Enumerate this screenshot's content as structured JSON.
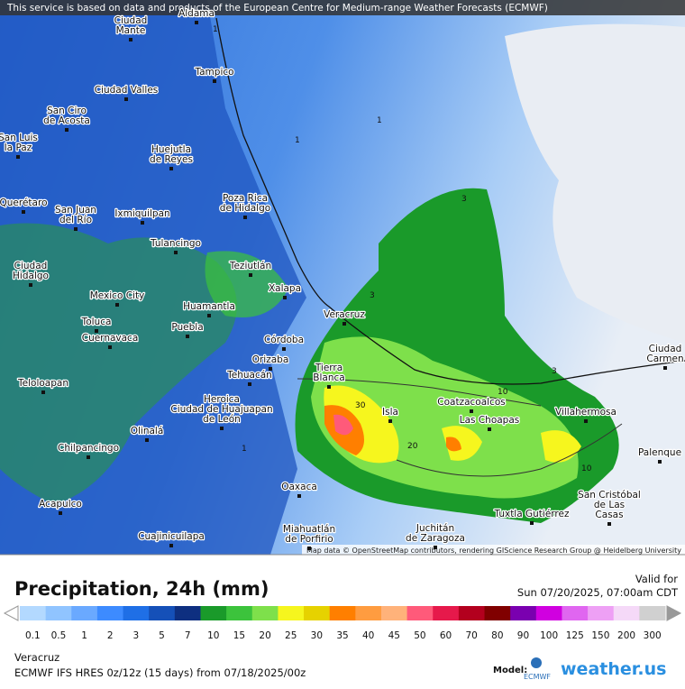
{
  "header": {
    "notice": "This service is based on data and products of the European Centre for Medium-range Weather Forecasts (ECMWF)"
  },
  "map": {
    "attribution": "Map data © OpenStreetMap contributors, rendering GIScience Research Group @ Heidelberg University",
    "cities": [
      {
        "lines": [
          "Aldama"
        ]
      },
      {
        "lines": [
          "Ciudad",
          "Mante"
        ]
      },
      {
        "lines": [
          "Tampico"
        ]
      },
      {
        "lines": [
          "Ciudad Valles"
        ]
      },
      {
        "lines": [
          "San Ciro",
          "de Acosta"
        ]
      },
      {
        "lines": [
          "San Luis",
          "la Paz"
        ]
      },
      {
        "lines": [
          "Huejutla",
          "de Reyes"
        ]
      },
      {
        "lines": [
          "Querétaro"
        ]
      },
      {
        "lines": [
          "San Juan",
          "del Río"
        ]
      },
      {
        "lines": [
          "Ixmiquilpan"
        ]
      },
      {
        "lines": [
          "Poza Rica",
          "de Hidalgo"
        ]
      },
      {
        "lines": [
          "Tulancingo"
        ]
      },
      {
        "lines": [
          "Ciudad",
          "Hidalgo"
        ]
      },
      {
        "lines": [
          "Teziutlán"
        ]
      },
      {
        "lines": [
          "Xalapa"
        ]
      },
      {
        "lines": [
          "Mexico City"
        ]
      },
      {
        "lines": [
          "Huamantla"
        ]
      },
      {
        "lines": [
          "Veracruz"
        ]
      },
      {
        "lines": [
          "Toluca"
        ]
      },
      {
        "lines": [
          "Puebla"
        ]
      },
      {
        "lines": [
          "Cuernavaca"
        ]
      },
      {
        "lines": [
          "Córdoba"
        ]
      },
      {
        "lines": [
          "Orizaba"
        ]
      },
      {
        "lines": [
          "Tierra",
          "Blanca"
        ]
      },
      {
        "lines": [
          "Tehuacán"
        ]
      },
      {
        "lines": [
          "Teloloapan"
        ]
      },
      {
        "lines": [
          "Heroica",
          "Ciudad de Huajuapan",
          "de León"
        ]
      },
      {
        "lines": [
          "Isla"
        ]
      },
      {
        "lines": [
          "Coatzacoalcos"
        ]
      },
      {
        "lines": [
          "Las Choapas"
        ]
      },
      {
        "lines": [
          "Villahermosa"
        ]
      },
      {
        "lines": [
          "Ciudad",
          "Carmen"
        ]
      },
      {
        "lines": [
          "Olinalá"
        ]
      },
      {
        "lines": [
          "Chilpancingo"
        ]
      },
      {
        "lines": [
          "Palenque"
        ]
      },
      {
        "lines": [
          "Oaxaca"
        ]
      },
      {
        "lines": [
          "San Cristóbal",
          "de Las",
          "Casas"
        ]
      },
      {
        "lines": [
          "Acapulco"
        ]
      },
      {
        "lines": [
          "Tuxtla Gutiérrez"
        ]
      },
      {
        "lines": [
          "Cuajinicuilapa"
        ]
      },
      {
        "lines": [
          "Miahuatlán",
          "de Porfirio"
        ]
      },
      {
        "lines": [
          "Juchitán",
          "de Zaragoza"
        ]
      }
    ],
    "contour_labels": [
      "1",
      "1",
      "1",
      "3",
      "3",
      "3",
      "10",
      "30",
      "20",
      "10",
      "1"
    ]
  },
  "legend": {
    "title": "Precipitation, 24h (mm)",
    "valid_label": "Valid for",
    "valid_time": "Sun 07/20/2025, 07:00am CDT",
    "items": [
      {
        "value": 0.1,
        "color": "#b3d9ff"
      },
      {
        "value": 0.5,
        "color": "#90c4ff"
      },
      {
        "value": 1,
        "color": "#6aa9ff"
      },
      {
        "value": 2,
        "color": "#3d8bff"
      },
      {
        "value": 3,
        "color": "#1f6fe6"
      },
      {
        "value": 5,
        "color": "#1550b8"
      },
      {
        "value": 7,
        "color": "#0e2f80"
      },
      {
        "value": 10,
        "color": "#1a9a2a"
      },
      {
        "value": 15,
        "color": "#3cc33c"
      },
      {
        "value": 20,
        "color": "#7ee04b"
      },
      {
        "value": 25,
        "color": "#f6f61e"
      },
      {
        "value": 30,
        "color": "#e6d200"
      },
      {
        "value": 35,
        "color": "#ff7f00"
      },
      {
        "value": 40,
        "color": "#ff9c40"
      },
      {
        "value": 45,
        "color": "#ffb27a"
      },
      {
        "value": 50,
        "color": "#ff5a7a"
      },
      {
        "value": 60,
        "color": "#e6194b"
      },
      {
        "value": 70,
        "color": "#b3001e"
      },
      {
        "value": 80,
        "color": "#800000"
      },
      {
        "value": 90,
        "color": "#7a00b0"
      },
      {
        "value": 100,
        "color": "#d000e0"
      },
      {
        "value": 125,
        "color": "#e066f0"
      },
      {
        "value": 150,
        "color": "#eea0f5"
      },
      {
        "value": 200,
        "color": "#f5d9f8"
      },
      {
        "value": 300,
        "color": "#d0d0d0"
      }
    ]
  },
  "footer": {
    "location": "Veracruz",
    "model_run": "ECMWF IFS HRES 0z/12z (15 days) from  07/18/2025/00z",
    "model_label": "Model:",
    "model_logo": "ECMWF",
    "brand": "weather.us"
  }
}
